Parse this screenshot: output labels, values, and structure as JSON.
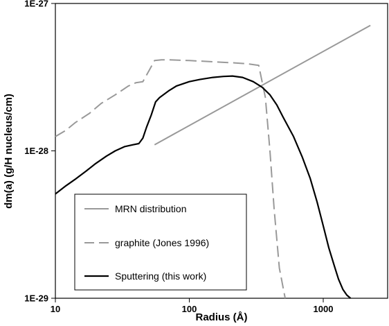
{
  "chart_data": {
    "type": "line",
    "title": "",
    "xlabel": "Radius (Å)",
    "ylabel": "dm(a) (g/H nucleus/cm)",
    "xscale": "log",
    "yscale": "log",
    "xlim": [
      10,
      2800
    ],
    "ylim": [
      1e-29,
      1e-27
    ],
    "x_ticks": [
      {
        "value": 10,
        "label": "10"
      },
      {
        "value": 100,
        "label": "100"
      },
      {
        "value": 1000,
        "label": "1000"
      }
    ],
    "y_ticks": [
      {
        "value": 1e-29,
        "label": "1E-29"
      },
      {
        "value": 1e-28,
        "label": "1E-28"
      },
      {
        "value": 1e-27,
        "label": "1E-27"
      }
    ],
    "grid": false,
    "legend_position": "lower-left",
    "series": [
      {
        "name": "MRN distribution",
        "color": "#999999",
        "dash": "solid",
        "x": [
          55,
          2250
        ],
        "y": [
          1.1e-28,
          7.1e-28
        ]
      },
      {
        "name": "graphite (Jones 1996)",
        "color": "#999999",
        "dash": "dashed",
        "x": [
          10,
          12,
          14,
          18,
          22,
          28,
          35,
          40,
          45,
          50,
          55,
          62,
          70,
          80,
          100,
          130,
          170,
          220,
          270,
          300,
          330,
          370,
          400,
          430,
          470,
          520
        ],
        "y": [
          1.25e-28,
          1.38e-28,
          1.55e-28,
          1.8e-28,
          2.1e-28,
          2.4e-28,
          2.75e-28,
          2.9e-28,
          2.95e-28,
          3.5e-28,
          4.1e-28,
          4.15e-28,
          4.15e-28,
          4.13e-28,
          4.1e-28,
          4.05e-28,
          4e-28,
          3.95e-28,
          3.9e-28,
          3.85e-28,
          3.8e-28,
          2.3e-28,
          1e-28,
          4e-29,
          1.6e-29,
          1e-29
        ]
      },
      {
        "name": "Sputtering (this work)",
        "color": "#000000",
        "dash": "solid",
        "x": [
          10,
          12,
          14,
          17,
          20,
          24,
          28,
          33,
          38,
          42,
          45,
          48,
          52,
          56,
          60,
          70,
          80,
          100,
          120,
          150,
          180,
          210,
          250,
          300,
          350,
          400,
          450,
          500,
          600,
          700,
          800,
          900,
          1000,
          1100,
          1200,
          1300,
          1400,
          1500,
          1600
        ],
        "y": [
          5.1e-29,
          5.8e-29,
          6.4e-29,
          7.3e-29,
          8.2e-29,
          9.2e-29,
          1e-28,
          1.07e-28,
          1.1e-28,
          1.12e-28,
          1.22e-28,
          1.45e-28,
          1.75e-28,
          2.15e-28,
          2.3e-28,
          2.55e-28,
          2.75e-28,
          2.95e-28,
          3.05e-28,
          3.15e-28,
          3.2e-28,
          3.22e-28,
          3.15e-28,
          2.95e-28,
          2.7e-28,
          2.4e-28,
          2.05e-28,
          1.7e-28,
          1.25e-28,
          9e-29,
          6.5e-29,
          4.5e-29,
          3.1e-29,
          2.2e-29,
          1.7e-29,
          1.35e-29,
          1.15e-29,
          1.05e-29,
          1e-29
        ]
      }
    ]
  }
}
